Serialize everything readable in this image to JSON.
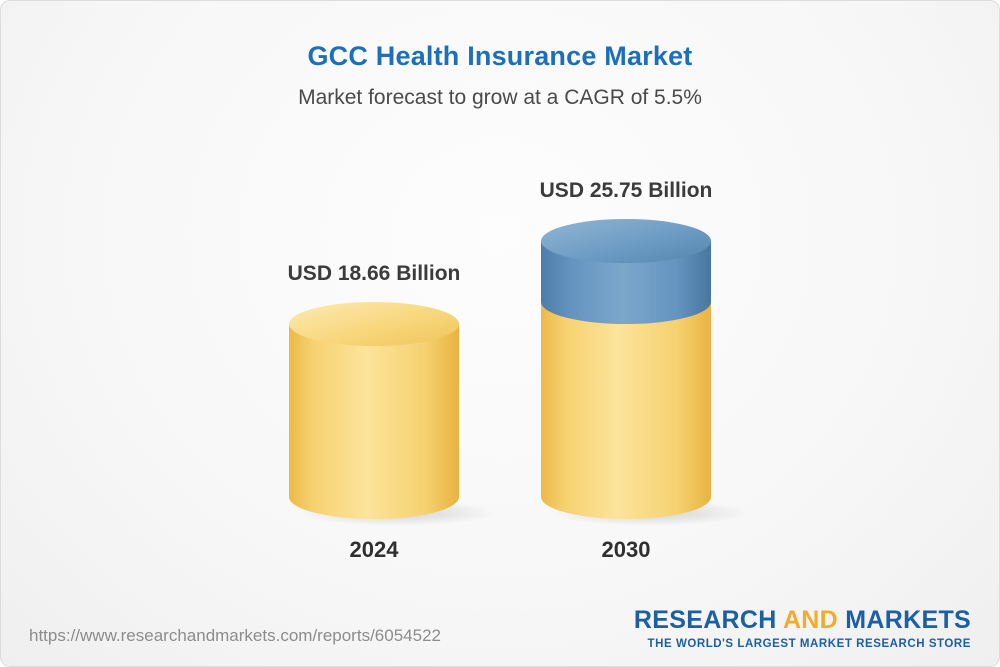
{
  "chart_data": {
    "type": "bar",
    "subtype": "3d-cylinder",
    "title": "GCC Health Insurance Market",
    "subtitle": "Market forecast to grow at a CAGR of 5.5%",
    "cagr": "5.5%",
    "unit": "USD Billion",
    "categories": [
      "2024",
      "2030"
    ],
    "values": [
      18.66,
      25.75
    ],
    "value_labels": [
      "USD 18.66 Billion",
      "USD 25.75 Billion"
    ],
    "ylim": [
      0,
      26
    ],
    "legend": "none",
    "grid": "off",
    "colors": {
      "bar_2024": "#f7d172",
      "bar_2030_base": "#f7d172",
      "bar_2030_growth": "#6494bf",
      "title_text": "#1d70b7",
      "label_text": "#3b3b3b"
    }
  },
  "footer": {
    "url": "https://www.researchandmarkets.com/reports/6054522",
    "logo": {
      "research": "RESEARCH",
      "and": "AND",
      "markets": "MARKETS",
      "tagline": "THE WORLD'S LARGEST MARKET RESEARCH STORE"
    }
  }
}
